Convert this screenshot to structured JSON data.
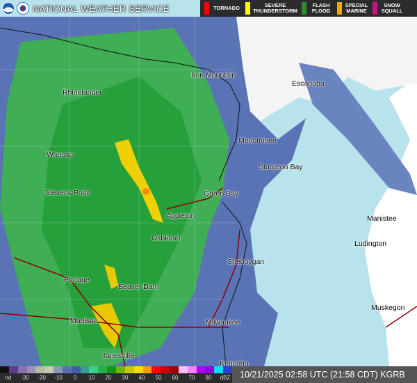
{
  "header": {
    "agency": "NATIONAL WEATHER SERVICE",
    "logo_icon": "noaa-nws-logo",
    "warnings": [
      {
        "label": "TORNADO",
        "color": "#ff0000"
      },
      {
        "label": "SEVERE THUNDERSTORM",
        "color": "#ffff00"
      },
      {
        "label": "FLASH FLOOD",
        "color": "#2e8b2e"
      },
      {
        "label": "SPECIAL MARINE",
        "color": "#ffa500"
      },
      {
        "label": "SNOW SQUALL",
        "color": "#c71585"
      }
    ]
  },
  "map": {
    "lake_color": "#b9e3ec",
    "cities": [
      {
        "name": "Iron Mountain"
      },
      {
        "name": "Escanaba"
      },
      {
        "name": "Rhinelander"
      },
      {
        "name": "Menominee"
      },
      {
        "name": "Wausau"
      },
      {
        "name": "Sturgeon Bay"
      },
      {
        "name": "Stevens Point"
      },
      {
        "name": "Green Bay"
      },
      {
        "name": "Appleton"
      },
      {
        "name": "Manistee"
      },
      {
        "name": "Oshkosh"
      },
      {
        "name": "Ludington"
      },
      {
        "name": "Sheboygan"
      },
      {
        "name": "Portage"
      },
      {
        "name": "Beaver Dam"
      },
      {
        "name": "Muskegon"
      },
      {
        "name": "Milwaukee"
      },
      {
        "name": "Madison"
      },
      {
        "name": "Janesville"
      },
      {
        "name": "Kenosha"
      }
    ]
  },
  "legend": {
    "unit": "dBZ",
    "ticks": [
      "nd",
      "-30",
      "-20",
      "-10",
      "0",
      "10",
      "20",
      "30",
      "40",
      "50",
      "60",
      "70",
      "80",
      "dBZ"
    ],
    "colors": [
      "#111111",
      "#5a3e8c",
      "#8a6fb0",
      "#9c8fb8",
      "#b9b9a0",
      "#c9c9b0",
      "#8a96b8",
      "#5a6fb0",
      "#3e5fa8",
      "#3a9a9a",
      "#3ad08a",
      "#2ab04a",
      "#139613",
      "#70b800",
      "#c8c800",
      "#ffd800",
      "#ffa000",
      "#ff0000",
      "#d00000",
      "#a00000",
      "#ffc0ff",
      "#ff80ff",
      "#b000ff",
      "#9000e0",
      "#00e0f0",
      "#2a40d0"
    ]
  },
  "timestamp": "10/21/2025 02:58 UTC (21:58 CDT) KGRB"
}
